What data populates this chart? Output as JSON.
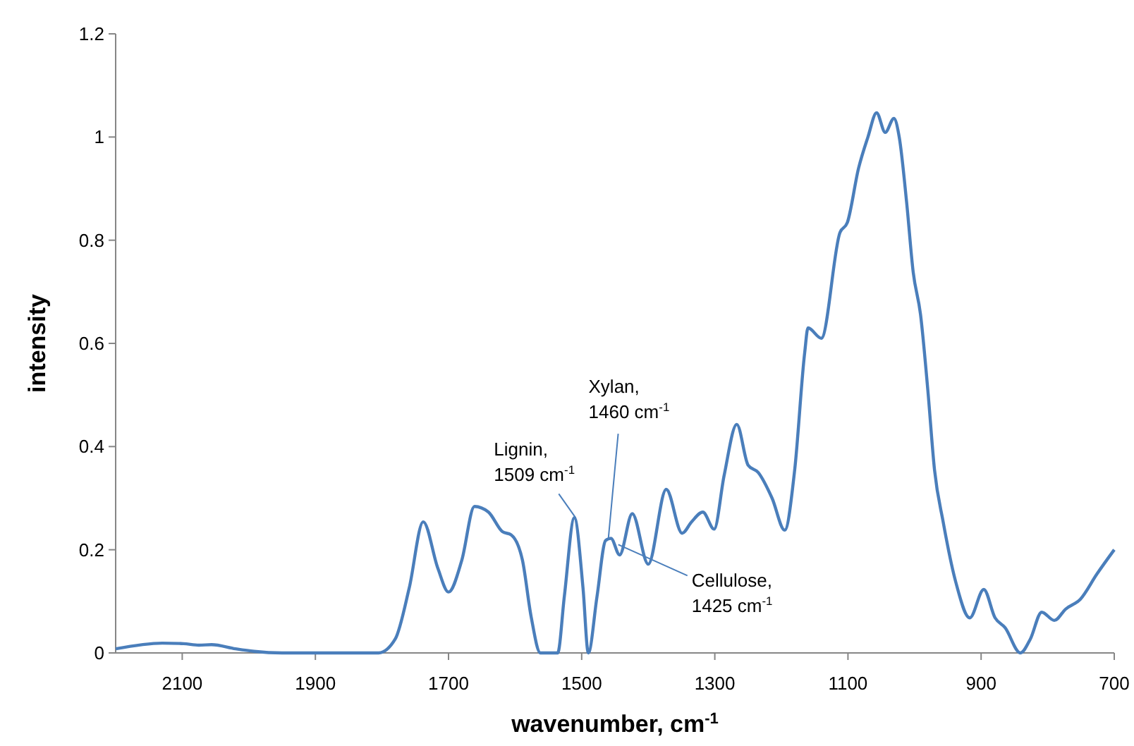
{
  "chart_data": {
    "type": "line",
    "xlabel": "wavenumber, cm$^{-1}$",
    "ylabel": "intensity",
    "xlim": [
      2200,
      700
    ],
    "xticks": [
      2100,
      1900,
      1700,
      1500,
      1300,
      1100,
      900,
      700
    ],
    "ylim": [
      0,
      1.2
    ],
    "yticks": [
      0,
      0.2,
      0.4,
      0.6,
      0.8,
      1,
      1.2
    ],
    "grid": false,
    "marker": "none",
    "line_style": "solid",
    "series": [
      {
        "color": "#4a7ebb",
        "x": [
          2200,
          2130,
          2098,
          2075,
          2056,
          2020,
          1992,
          1950,
          1844,
          1805,
          1780,
          1759,
          1738,
          1716,
          1700,
          1680,
          1661,
          1640,
          1619,
          1606,
          1589,
          1576,
          1562,
          1536,
          1526,
          1511,
          1498,
          1490,
          1477,
          1464,
          1456,
          1443,
          1424,
          1400,
          1373,
          1349,
          1335,
          1318,
          1301,
          1286,
          1267,
          1250,
          1235,
          1214,
          1195,
          1180,
          1165,
          1160,
          1140,
          1112,
          1101,
          1084,
          1070,
          1057,
          1044,
          1031,
          1023,
          1012,
          1002,
          991,
          980,
          970,
          957,
          938,
          917,
          896,
          879,
          864,
          841,
          826,
          809,
          790,
          773,
          751,
          726,
          700
        ],
        "values": [
          0.008,
          0.019,
          0.018,
          0.015,
          0.016,
          0.008,
          0.003,
          0,
          0,
          0,
          0.027,
          0.126,
          0.254,
          0.164,
          0.118,
          0.18,
          0.284,
          0.273,
          0.235,
          0.229,
          0.18,
          0.071,
          0,
          0,
          0.11,
          0.262,
          0.126,
          0,
          0.109,
          0.218,
          0.222,
          0.19,
          0.27,
          0.172,
          0.317,
          0.232,
          0.254,
          0.273,
          0.24,
          0.344,
          0.443,
          0.364,
          0.35,
          0.3,
          0.238,
          0.355,
          0.582,
          0.63,
          0.61,
          0.815,
          0.834,
          0.94,
          1.0,
          1.047,
          1.009,
          1.036,
          1.0,
          0.875,
          0.738,
          0.656,
          0.509,
          0.355,
          0.254,
          0.137,
          0.068,
          0.123,
          0.068,
          0.049,
          0,
          0.027,
          0.079,
          0.063,
          0.085,
          0.104,
          0.153,
          0.2
        ]
      }
    ],
    "annotations": [
      {
        "text": "Lignin,\n1509 cm$^{-1}$",
        "x": 1509,
        "y": 0.262
      },
      {
        "text": "Xylan,\n1460 cm$^{-1}$",
        "x": 1460,
        "y": 0.22
      },
      {
        "text": "Cellulose,\n1425 cm$^{-1}$",
        "x": 1445,
        "y": 0.21
      }
    ]
  }
}
